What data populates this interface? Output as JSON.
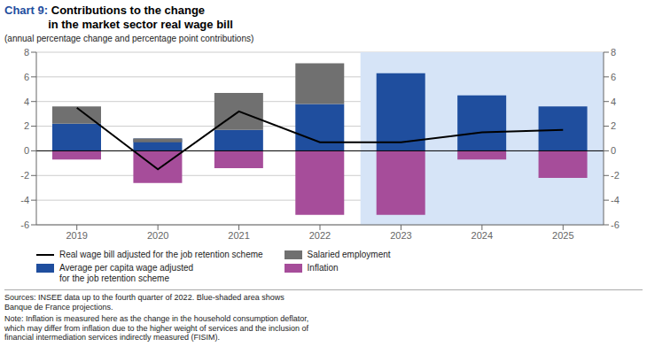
{
  "chart_data": {
    "type": "bar",
    "title": "Chart 9: Contributions to the change\nin the market sector real wage bill",
    "subtitle": "(annual percentage change and percentage point contributions)",
    "categories": [
      "2019",
      "2020",
      "2021",
      "2022",
      "2023",
      "2024",
      "2025"
    ],
    "series": [
      {
        "name": "Real wage bill adjusted for the job retention scheme",
        "type": "line",
        "color": "#000000",
        "values": [
          3.5,
          -1.5,
          3.2,
          0.7,
          0.7,
          1.5,
          1.7
        ]
      },
      {
        "name": "Average per capita wage adjusted\nfor the job retention scheme",
        "type": "bar",
        "stacked": true,
        "color": "#1f4e9e",
        "values": [
          2.2,
          1.0,
          1.7,
          3.8,
          6.3,
          4.5,
          3.6
        ]
      },
      {
        "name": "Salaried employment",
        "type": "bar",
        "stacked": true,
        "color": "#707070",
        "values": [
          1.4,
          -0.3,
          3.0,
          3.3,
          0.0,
          0.0,
          0.0
        ]
      },
      {
        "name": "Inflation",
        "type": "bar",
        "stacked": false,
        "color": "#a64d9a",
        "values": [
          -0.7,
          -2.6,
          -1.4,
          -5.2,
          -5.2,
          -0.7,
          -2.2
        ]
      }
    ],
    "ylim": [
      -6,
      8
    ],
    "yticks": [
      -6,
      -4,
      -2,
      0,
      2,
      4,
      6,
      8
    ],
    "y2lim": [
      -6,
      8
    ],
    "y2ticks": [
      -6,
      -4,
      -2,
      0,
      2,
      4,
      6,
      8
    ],
    "grid": true,
    "projection_start": "2023",
    "projection_color": "#d6e4f7",
    "annotations": [
      "Sources: INSEE data up to the fourth quarter of 2022. Blue-shaded area shows\nBanque de France projections.",
      "Note: Inflation is measured here as the change in the household consumption deflator,\nwhich may differ from inflation due to the higher weight of services and the inclusion of\nfinancial intermediation services indirectly measured (FISIM)."
    ]
  }
}
